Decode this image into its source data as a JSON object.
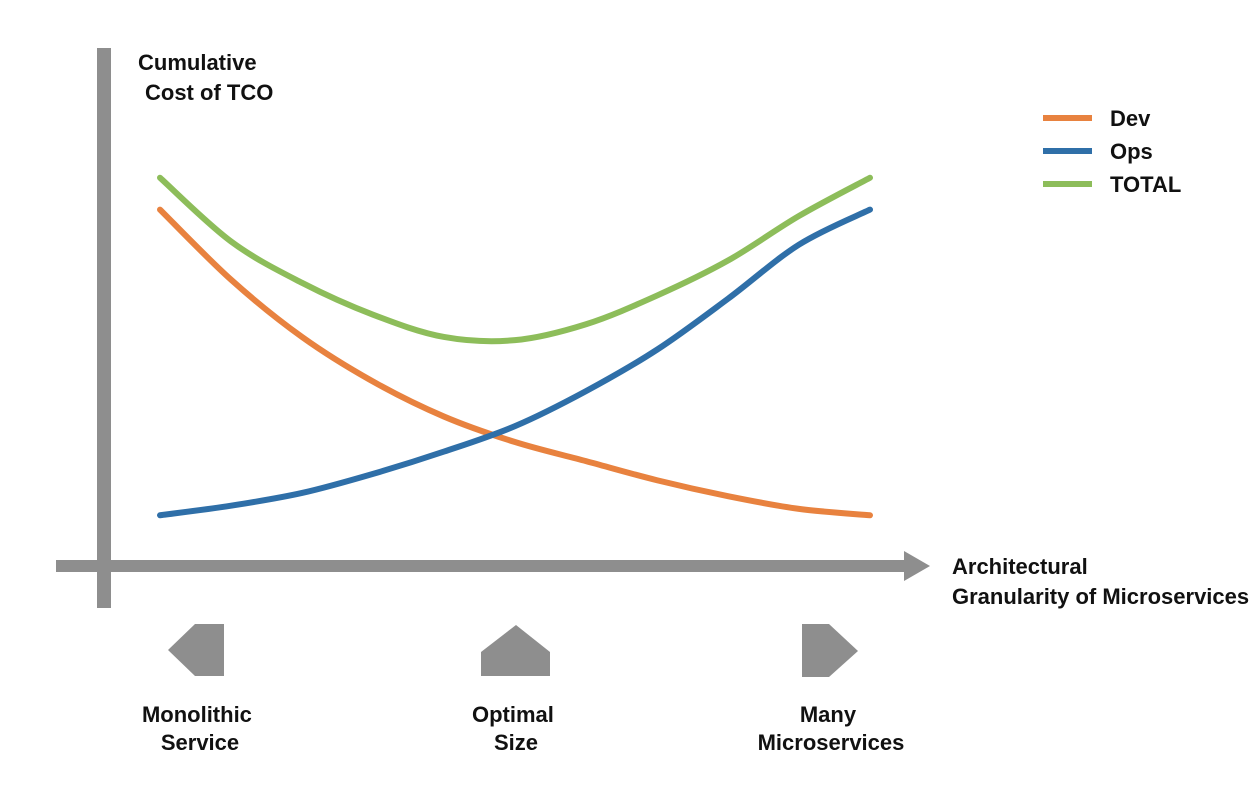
{
  "chart_data": {
    "type": "line",
    "title": "",
    "ylabel": [
      "Cumulative",
      "Cost of TCO"
    ],
    "xlabel": [
      "Architectural",
      "Granularity of Microservices"
    ],
    "x": [
      0,
      0.1,
      0.2,
      0.3,
      0.4,
      0.5,
      0.6,
      0.7,
      0.8,
      0.9,
      1.0
    ],
    "xlim": [
      0,
      1
    ],
    "ylim": [
      0,
      1.25
    ],
    "grid": false,
    "legend_position": "top-right",
    "series": [
      {
        "name": "Dev",
        "color": "#E8823F",
        "values": [
          1.0,
          0.78,
          0.6,
          0.46,
          0.35,
          0.27,
          0.21,
          0.15,
          0.1,
          0.06,
          0.04
        ]
      },
      {
        "name": "Ops",
        "color": "#2F6FA8",
        "values": [
          0.04,
          0.07,
          0.11,
          0.17,
          0.24,
          0.32,
          0.43,
          0.56,
          0.72,
          0.89,
          1.0
        ]
      },
      {
        "name": "TOTAL",
        "color": "#8DBD5A",
        "values": [
          1.1,
          0.9,
          0.77,
          0.67,
          0.6,
          0.59,
          0.64,
          0.73,
          0.84,
          0.98,
          1.1
        ]
      }
    ],
    "annotations": [
      {
        "direction": "left",
        "label": [
          "Monolithic",
          "Service"
        ]
      },
      {
        "direction": "up",
        "label": [
          "Optimal",
          "Size"
        ]
      },
      {
        "direction": "right",
        "label": [
          "Many",
          "Microservices"
        ]
      }
    ]
  },
  "colors": {
    "axis": "#8E8E8E",
    "arrow_icon": "#8E8E8E",
    "text": "#111111"
  },
  "icons": {
    "left": "arrow-left-icon",
    "up": "arrow-up-icon",
    "right": "arrow-right-icon"
  }
}
